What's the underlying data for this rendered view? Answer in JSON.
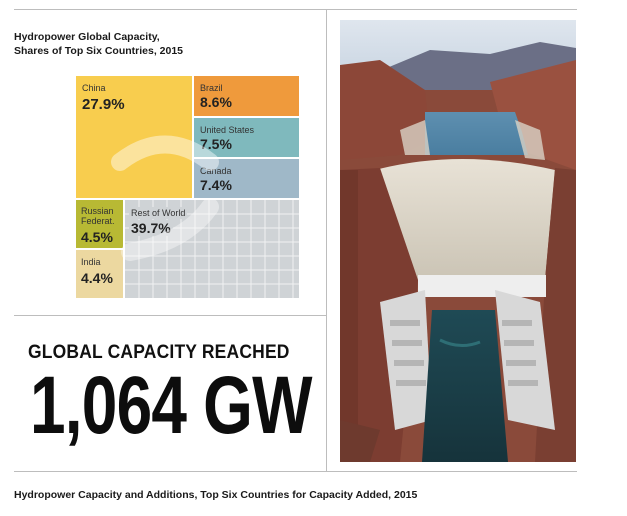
{
  "chart": {
    "title_line1": "Hydropower Global Capacity,",
    "title_line2": "Shares of Top Six Countries, 2015"
  },
  "chart_data": {
    "type": "treemap",
    "title": "Hydropower Global Capacity, Shares of Top Six Countries, 2015",
    "unit": "%",
    "items": [
      {
        "name": "China",
        "value": 27.9,
        "label": "27.9%",
        "color": "#f8cd4e"
      },
      {
        "name": "Brazil",
        "value": 8.6,
        "label": "8.6%",
        "color": "#ef9a3c"
      },
      {
        "name": "United States",
        "value": 7.5,
        "label": "7.5%",
        "color": "#7fb9bd"
      },
      {
        "name": "Canada",
        "value": 7.4,
        "label": "7.4%",
        "color": "#9fb8c8"
      },
      {
        "name": "Russian Federat.",
        "value": 4.5,
        "label": "4.5%",
        "color": "#b8b934"
      },
      {
        "name": "India",
        "value": 4.4,
        "label": "4.4%",
        "color": "#ecd8a0"
      },
      {
        "name": "Rest of World",
        "value": 39.7,
        "label": "39.7%",
        "color": "#cfd3d6"
      }
    ]
  },
  "headline": {
    "text": "GLOBAL CAPACITY REACHED",
    "value": "1,064 GW"
  },
  "footer": {
    "text": "Hydropower Capacity and Additions, Top Six Countries for Capacity Added, 2015"
  }
}
